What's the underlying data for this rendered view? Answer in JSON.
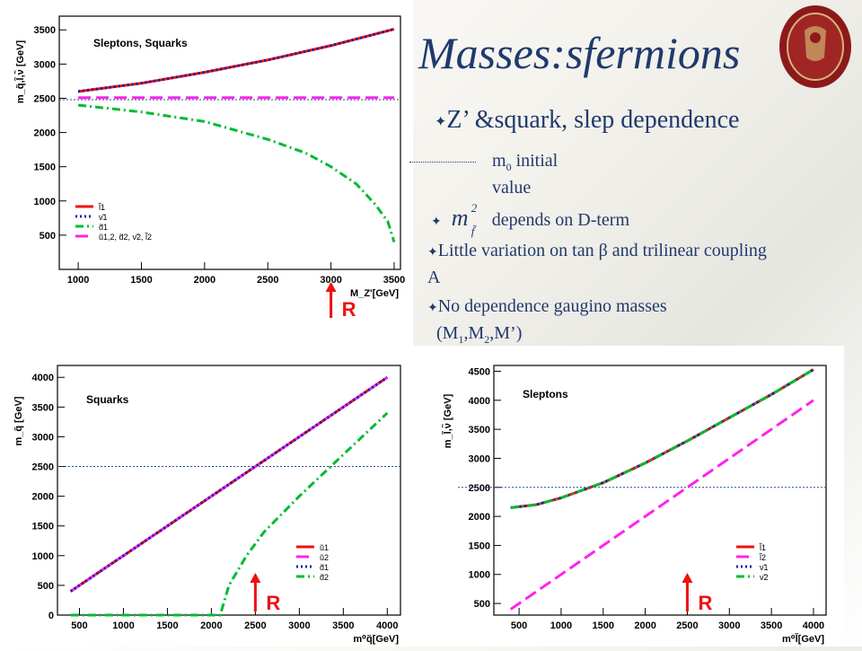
{
  "slide": {
    "title": "Masses:sfermions",
    "bullet1": "Z’ &squark, slep dependence",
    "note_line1": "m",
    "note_sub": "0",
    "note_line1b": " initial",
    "note_line2": "value",
    "bullet2_symbol": "m",
    "bullet2_sup": "2",
    "bullet2_sub": "f̃",
    "bullet2": " depends on  D-term",
    "bullet3a": "Little variation on tan β and trilinear coupling",
    "bullet3b": "A",
    "bullet4": "No dependence gaugino masses",
    "bullet4b": "(M",
    "m_labels": [
      "1",
      "2"
    ],
    "bullet4c": ",M’)",
    "r_label": "R",
    "bullet_glyph": "✦"
  },
  "colors": {
    "title": "#1f3a6e",
    "red": "#ee1111",
    "purple": "#8a1fd6",
    "magenta": "#ff22ee",
    "blue": "#0b1fa8",
    "green": "#00bb33",
    "ref": "#1f4f8f"
  },
  "chart_data": [
    {
      "type": "line",
      "title": "Sleptons, Squarks",
      "xlabel": "M_Z'[GeV]",
      "ylabel": "m_q̃,l̃,ν̃ [GeV]",
      "xlim": [
        850,
        3550
      ],
      "ylim": [
        0,
        3700
      ],
      "xticks": [
        1000,
        1500,
        2000,
        2500,
        3000,
        3500
      ],
      "yticks": [
        500,
        1000,
        1500,
        2000,
        2500,
        3000,
        3500
      ],
      "reference_line": 2480,
      "marker_x": 3000,
      "legend": [
        "l̃1",
        "ν̃1",
        "d̃1",
        "ũ1,2, d̃2, ν̃2, l̃2"
      ],
      "series": [
        {
          "name": "l̃1",
          "color": "red",
          "dash": "solid",
          "x": [
            1000,
            1500,
            2000,
            2500,
            3000,
            3500
          ],
          "y": [
            2600,
            2720,
            2880,
            3060,
            3270,
            3510
          ]
        },
        {
          "name": "ν̃1",
          "color": "blue",
          "dash": "dot",
          "x": [
            1000,
            1500,
            2000,
            2500,
            3000,
            3500
          ],
          "y": [
            2600,
            2720,
            2880,
            3060,
            3270,
            3510
          ]
        },
        {
          "name": "ũ1,2, d̃2, ν̃2, l̃2",
          "color": "magenta",
          "dash": "dash",
          "x": [
            1000,
            3500
          ],
          "y": [
            2510,
            2510
          ]
        },
        {
          "name": "d̃1",
          "color": "green",
          "dash": "dashdot",
          "x": [
            1000,
            1500,
            2000,
            2500,
            2800,
            3000,
            3200,
            3350,
            3450,
            3500
          ],
          "y": [
            2400,
            2300,
            2160,
            1900,
            1700,
            1500,
            1250,
            950,
            700,
            400
          ]
        }
      ]
    },
    {
      "type": "line",
      "title": "Squarks",
      "xlabel": "m⁰q̃[GeV]",
      "ylabel": "m_q̃ [GeV]",
      "xlim": [
        250,
        4150
      ],
      "ylim": [
        0,
        4200
      ],
      "xticks": [
        500,
        1000,
        1500,
        2000,
        2500,
        3000,
        3500,
        4000
      ],
      "yticks": [
        0,
        500,
        1000,
        1500,
        2000,
        2500,
        3000,
        3500,
        4000
      ],
      "reference_line": 2500,
      "marker_x": 2500,
      "legend": [
        "ũ1",
        "ũ2",
        "d̃1",
        "d̃2"
      ],
      "series": [
        {
          "name": "ũ1",
          "color": "red",
          "dash": "solid",
          "x": [
            400,
            4000
          ],
          "y": [
            400,
            4000
          ]
        },
        {
          "name": "ũ2",
          "color": "magenta",
          "dash": "dash",
          "x": [
            400,
            4000
          ],
          "y": [
            400,
            4000
          ]
        },
        {
          "name": "d̃1",
          "color": "blue",
          "dash": "dot",
          "x": [
            400,
            4000
          ],
          "y": [
            400,
            4000
          ]
        },
        {
          "name": "d̃2",
          "color": "green",
          "dash": "dashdot",
          "x": [
            400,
            2100,
            2200,
            2400,
            2600,
            3000,
            3500,
            4000
          ],
          "y": [
            0,
            0,
            500,
            1000,
            1400,
            2000,
            2700,
            3400
          ]
        }
      ]
    },
    {
      "type": "line",
      "title": "Sleptons",
      "xlabel": "m⁰l̃[GeV]",
      "ylabel": "m_l̃,ν̃ [GeV]",
      "xlim": [
        200,
        4150
      ],
      "ylim": [
        300,
        4600
      ],
      "xticks": [
        500,
        1000,
        1500,
        2000,
        2500,
        3000,
        3500,
        4000
      ],
      "yticks": [
        500,
        1000,
        1500,
        2000,
        2500,
        3000,
        3500,
        4000,
        4500
      ],
      "reference_line": 2500,
      "marker_x": 2500,
      "legend": [
        "l̃1",
        "l̃2",
        "ν̃1",
        "ν̃2"
      ],
      "series": [
        {
          "name": "l̃1",
          "color": "red",
          "dash": "solid",
          "x": [
            400,
            700,
            1000,
            1500,
            2000,
            2500,
            3000,
            3500,
            4000
          ],
          "y": [
            2150,
            2200,
            2320,
            2580,
            2920,
            3300,
            3700,
            4100,
            4530
          ]
        },
        {
          "name": "ν̃1",
          "color": "blue",
          "dash": "dot",
          "x": [
            400,
            700,
            1000,
            1500,
            2000,
            2500,
            3000,
            3500,
            4000
          ],
          "y": [
            2150,
            2200,
            2320,
            2580,
            2920,
            3300,
            3700,
            4100,
            4530
          ]
        },
        {
          "name": "ν̃2",
          "color": "green",
          "dash": "dashdot",
          "x": [
            400,
            700,
            1000,
            1500,
            2000,
            2500,
            3000,
            3500,
            4000
          ],
          "y": [
            2150,
            2200,
            2320,
            2580,
            2920,
            3300,
            3700,
            4100,
            4530
          ]
        },
        {
          "name": "l̃2",
          "color": "magenta",
          "dash": "dash",
          "x": [
            400,
            4000
          ],
          "y": [
            400,
            4000
          ]
        }
      ]
    }
  ]
}
